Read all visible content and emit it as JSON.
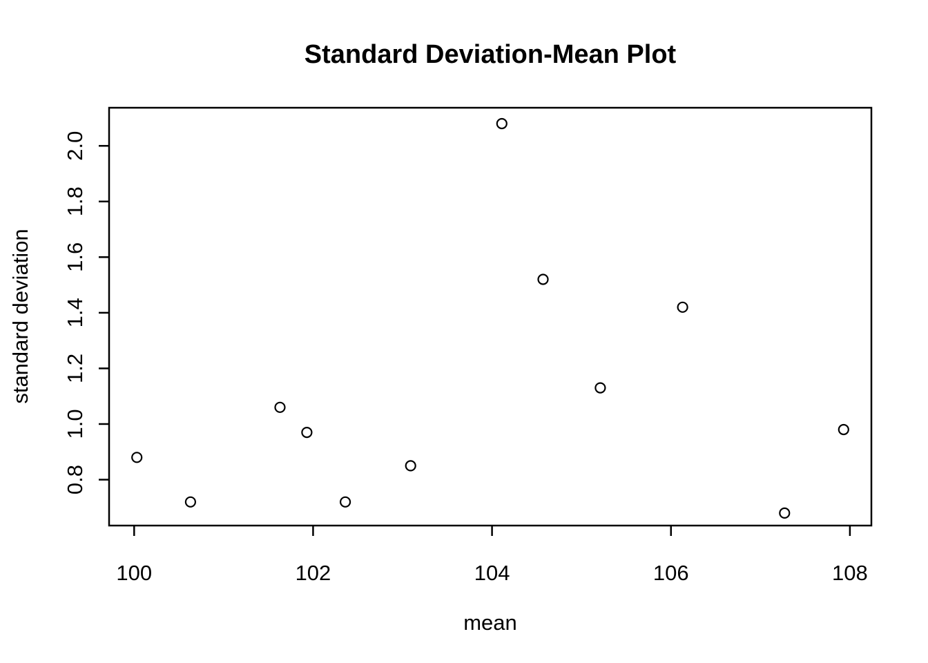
{
  "chart_data": {
    "type": "scatter",
    "title": "Standard Deviation-Mean Plot",
    "xlabel": "mean",
    "ylabel": "standard deviation",
    "xlim": [
      99.72,
      108.24
    ],
    "ylim": [
      0.635,
      2.137
    ],
    "xticks": [
      "100",
      "102",
      "104",
      "106",
      "108"
    ],
    "yticks": [
      "0.8",
      "1.0",
      "1.2",
      "1.4",
      "1.6",
      "1.8",
      "2.0"
    ],
    "grid": false,
    "legend": "none",
    "marker": "open-circle",
    "colors": {
      "foreground": "#000000",
      "background": "#ffffff"
    },
    "points": [
      {
        "mean": 100.03,
        "sd": 0.88
      },
      {
        "mean": 100.63,
        "sd": 0.72
      },
      {
        "mean": 101.63,
        "sd": 1.06
      },
      {
        "mean": 101.93,
        "sd": 0.97
      },
      {
        "mean": 102.36,
        "sd": 0.72
      },
      {
        "mean": 103.09,
        "sd": 0.85
      },
      {
        "mean": 104.11,
        "sd": 2.08
      },
      {
        "mean": 104.57,
        "sd": 1.52
      },
      {
        "mean": 105.21,
        "sd": 1.13
      },
      {
        "mean": 106.13,
        "sd": 1.42
      },
      {
        "mean": 107.27,
        "sd": 0.68
      },
      {
        "mean": 107.93,
        "sd": 0.98
      }
    ]
  }
}
